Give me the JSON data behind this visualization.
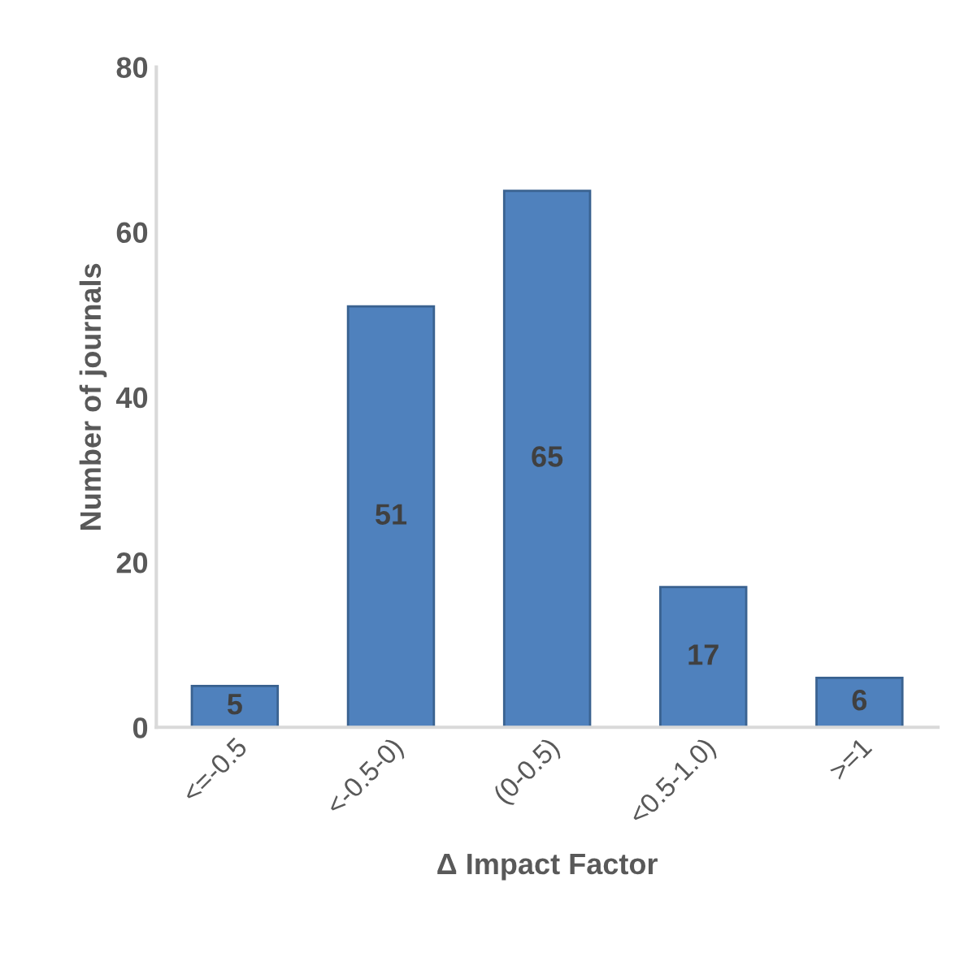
{
  "chart_data": {
    "type": "bar",
    "xlabel": "Δ Impact Factor",
    "ylabel": "Number of journals",
    "categories": [
      "<=-0.5",
      "<-0.5-0)",
      "(0-0.5)",
      "<0.5-1.0)",
      ">=1"
    ],
    "values": [
      5,
      51,
      65,
      17,
      6
    ],
    "color": "#4f81bd",
    "ylim": [
      0,
      80
    ],
    "yticks": [
      0,
      20,
      40,
      60,
      80
    ],
    "grid": false,
    "data_labels": true
  }
}
